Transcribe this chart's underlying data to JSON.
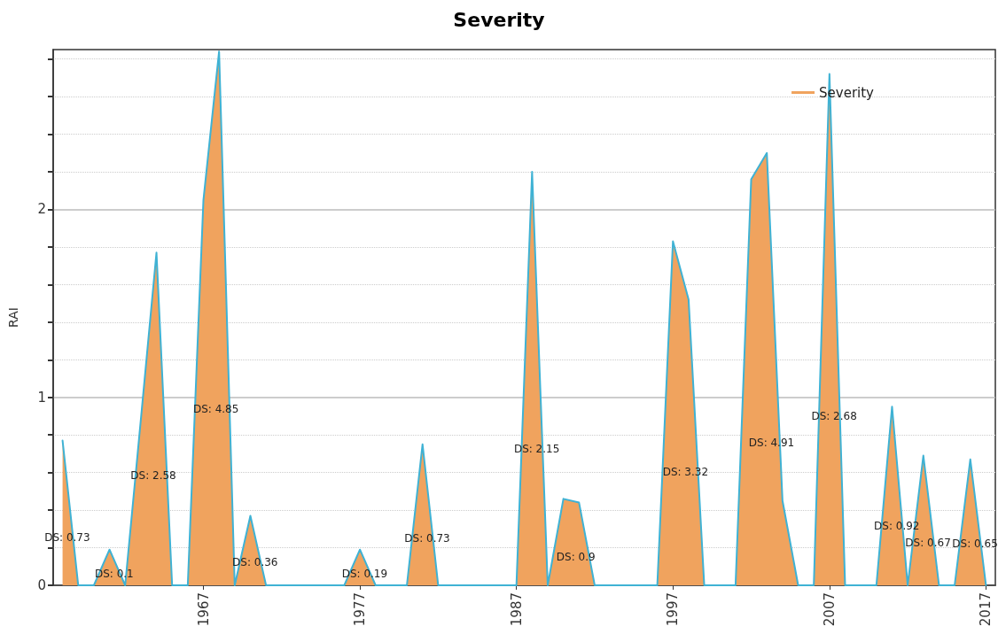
{
  "chart_data": {
    "type": "area",
    "title": "Severity",
    "ylabel": "RAI",
    "x": [
      1958,
      1959,
      1960,
      1961,
      1962,
      1963,
      1964,
      1965,
      1966,
      1967,
      1968,
      1969,
      1970,
      1971,
      1972,
      1973,
      1974,
      1975,
      1976,
      1977,
      1978,
      1979,
      1980,
      1981,
      1982,
      1983,
      1984,
      1985,
      1986,
      1987,
      1988,
      1989,
      1990,
      1991,
      1992,
      1993,
      1994,
      1995,
      1996,
      1997,
      1998,
      1999,
      2000,
      2001,
      2002,
      2003,
      2004,
      2005,
      2006,
      2007,
      2008,
      2009,
      2010,
      2011,
      2012,
      2013,
      2014,
      2015,
      2016,
      2017
    ],
    "series": [
      {
        "name": "Severity",
        "color": "#f0a35e",
        "values": [
          0.77,
          0,
          0,
          0.19,
          0,
          0.88,
          1.77,
          0,
          0,
          2.05,
          2.84,
          0,
          0.37,
          0,
          0,
          0,
          0,
          0,
          0,
          0.19,
          0,
          0,
          0,
          0.75,
          0,
          0,
          0,
          0,
          0,
          0,
          2.2,
          0,
          0.46,
          0.44,
          0,
          0,
          0,
          0,
          0,
          1.83,
          1.52,
          0,
          0,
          0,
          2.16,
          2.3,
          0.45,
          0,
          0,
          2.72,
          0,
          0,
          0,
          0.95,
          0,
          0.69,
          0,
          0,
          0.67,
          0
        ]
      }
    ],
    "xlim": [
      1957.4,
      2017.6
    ],
    "xticks": [
      1967,
      1977,
      1987,
      1997,
      2007,
      2017
    ],
    "ylim": [
      0,
      2.85
    ],
    "yticks": [
      0,
      {
        "value": 0.2,
        "label": null
      },
      {
        "value": 0.4,
        "label": null
      },
      {
        "value": 0.6,
        "label": null
      },
      {
        "value": 0.8,
        "label": null
      },
      1,
      {
        "value": 1.2,
        "label": null
      },
      {
        "value": 1.4,
        "label": null
      },
      {
        "value": 1.6,
        "label": null
      },
      {
        "value": 1.8,
        "label": null
      },
      2,
      {
        "value": 2.2,
        "label": null
      },
      {
        "value": 2.4,
        "label": null
      },
      {
        "value": 2.6,
        "label": null
      },
      {
        "value": 2.8,
        "label": null
      }
    ],
    "grid": "y",
    "legend": "top right",
    "marker": "none",
    "line_style": "solid",
    "annotations": [
      "DS: 0.73",
      "DS: 0.1",
      "DS: 2.58",
      "DS: 4.85",
      "DS: 0.36",
      "DS: 0.19",
      "DS: 0.73",
      "DS: 2.15",
      "DS: 0.9",
      "DS: 3.32",
      "DS: 4.91",
      "DS: 2.68",
      "DS: 0.92",
      "DS: 0.67",
      "DS: 0.65"
    ]
  }
}
